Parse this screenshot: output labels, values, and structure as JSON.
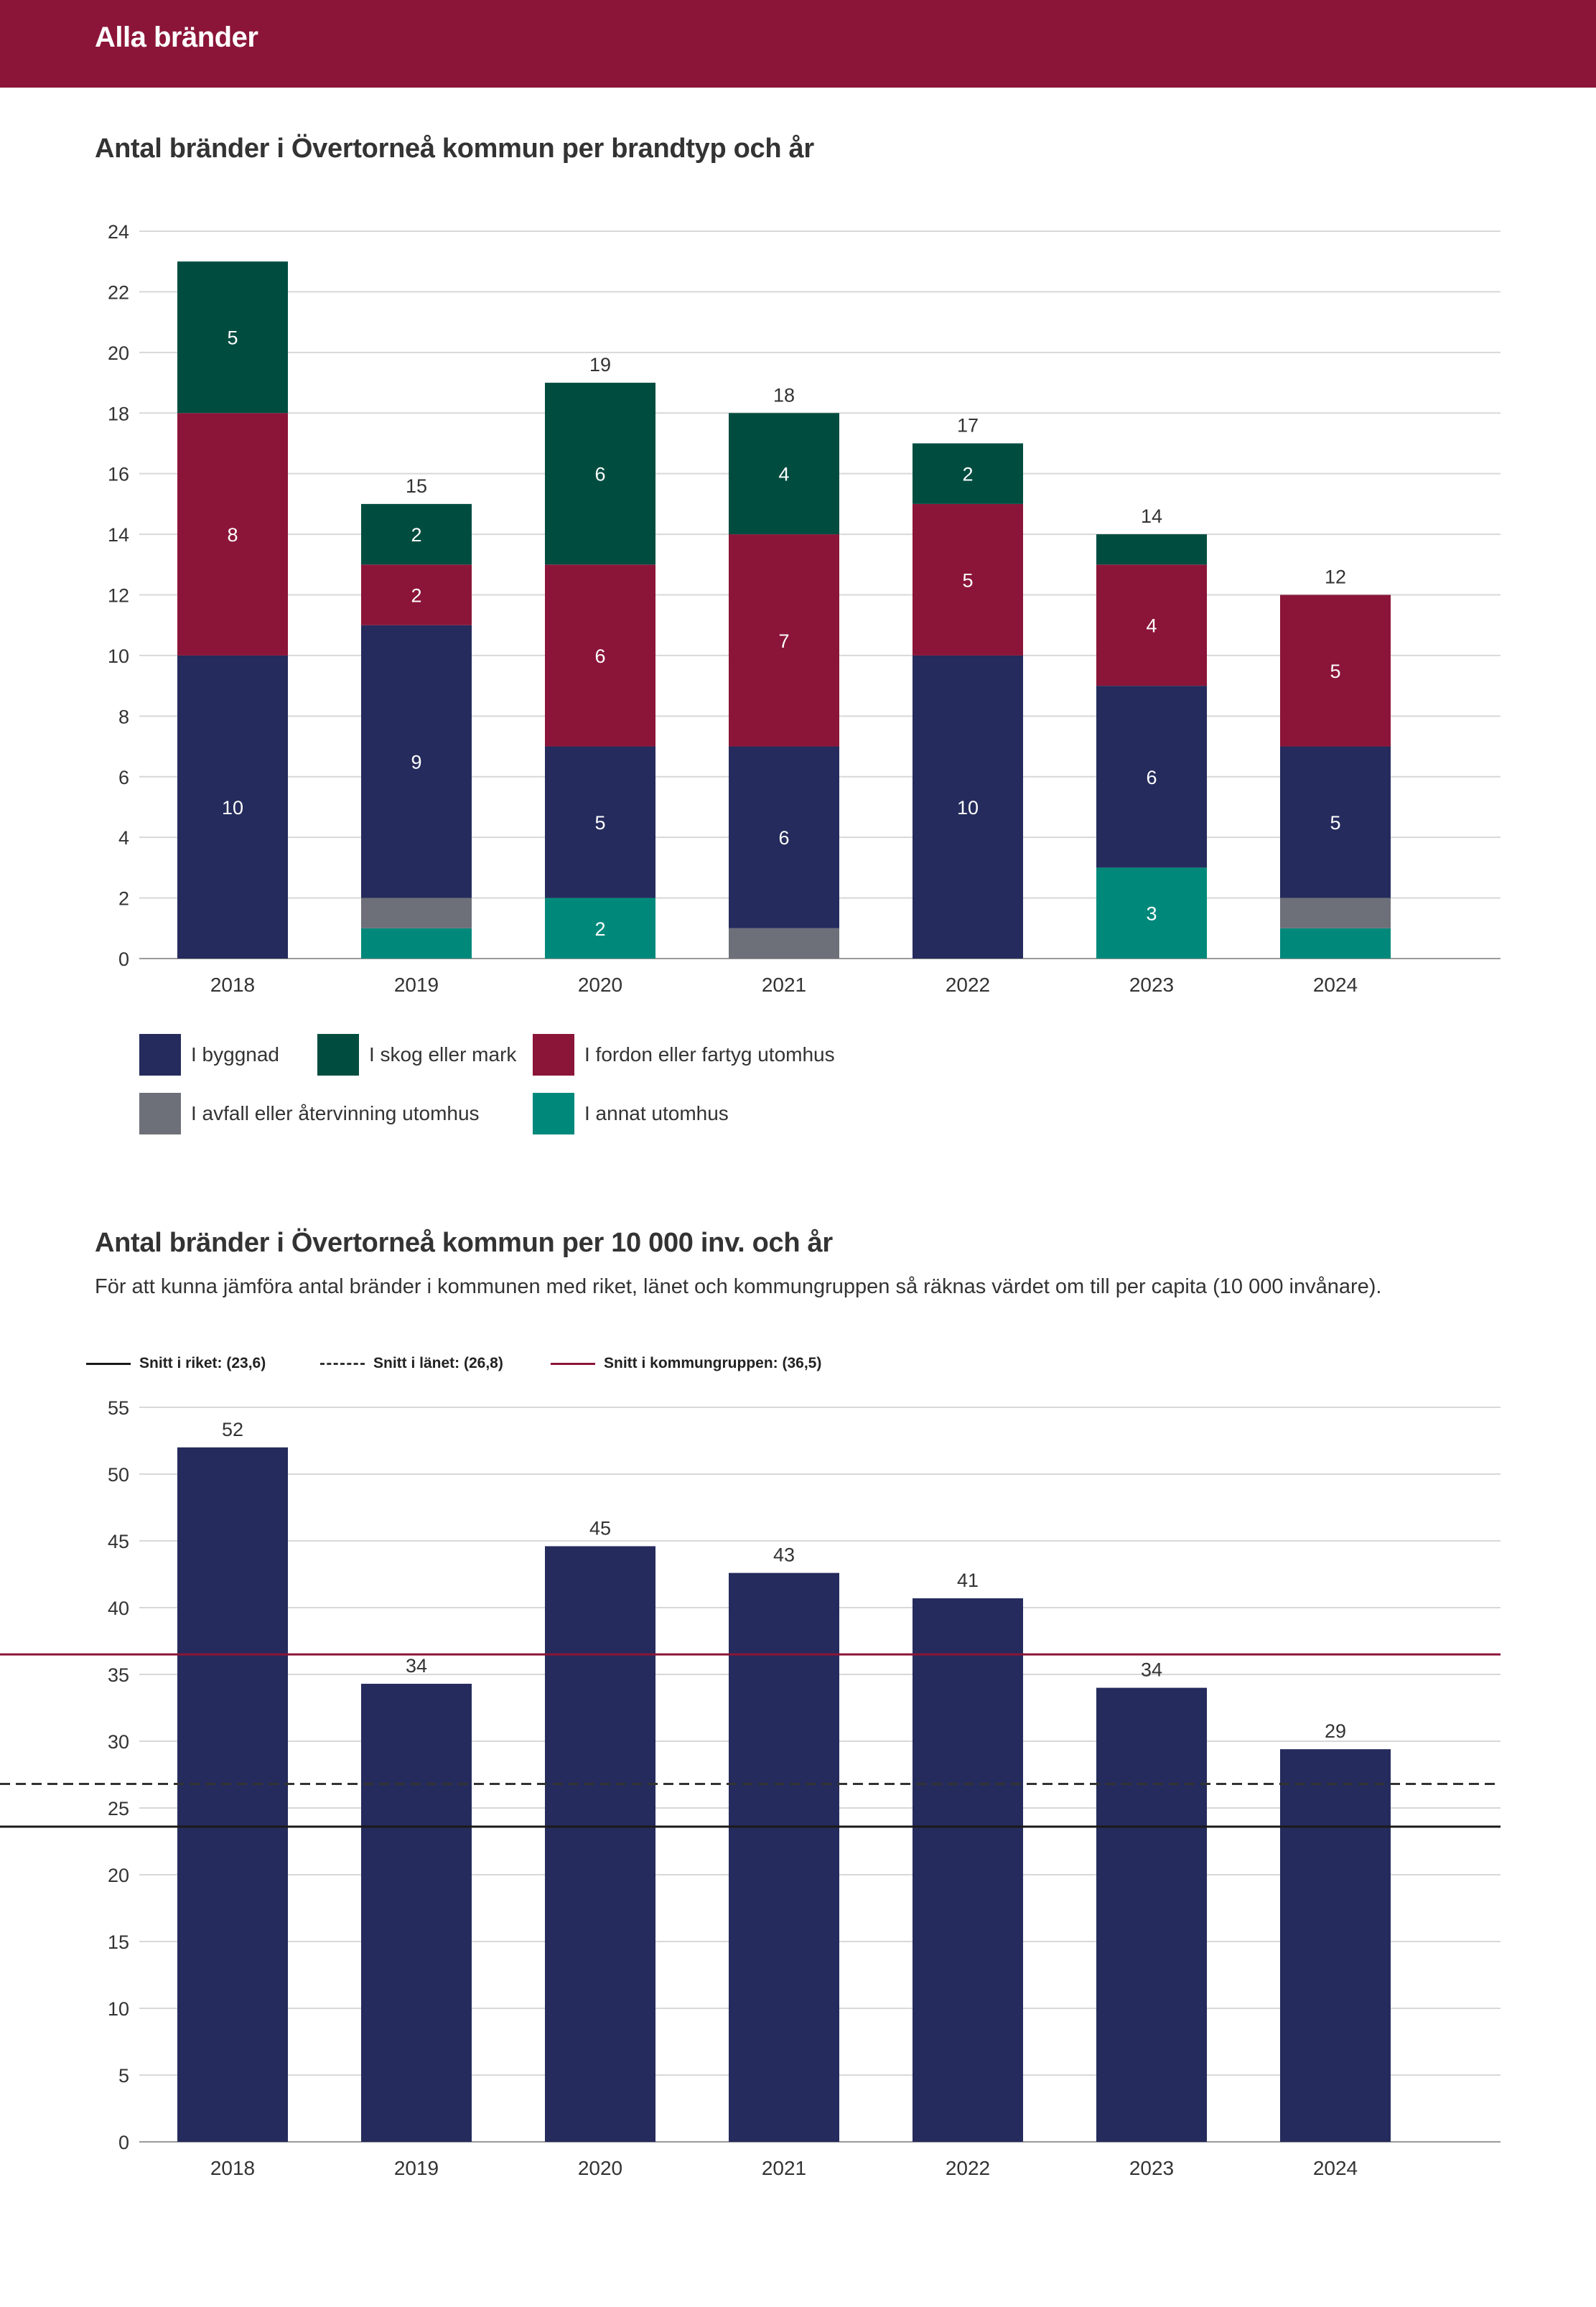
{
  "header": {
    "title": "Alla bränder"
  },
  "section1": {
    "title": "Antal bränder i Övertorneå kommun per brandtyp och år"
  },
  "section2": {
    "title": "Antal bränder i Övertorneå kommun per 10 000 inv. och år",
    "description": "För att kunna jämföra antal bränder i kommunen med riket, länet och kommungruppen så räknas värdet om till per capita (10 000 invånare)."
  },
  "colors": {
    "banner": "#8b1538",
    "byggnad": "#252b5c",
    "skog": "#004d40",
    "fordon": "#8b1538",
    "avfall": "#6e7079",
    "annat": "#00897b",
    "grid": "#d8d8d8",
    "riket_line": "#1a1a1a",
    "lanet_line": "#333333",
    "kommungrupp_line": "#8b1538"
  },
  "chart_data": [
    {
      "type": "bar",
      "stacked": true,
      "title": "Antal bränder i Övertorneå kommun per brandtyp och år",
      "categories": [
        "2018",
        "2019",
        "2020",
        "2021",
        "2022",
        "2023",
        "2024"
      ],
      "series": [
        {
          "name": "I annat utomhus",
          "key": "annat",
          "values": [
            0,
            1,
            2,
            0,
            0,
            3,
            1
          ],
          "labels": [
            "",
            "",
            "2",
            "",
            "",
            "3",
            ""
          ]
        },
        {
          "name": "I avfall eller återvinning utomhus",
          "key": "avfall",
          "values": [
            0,
            1,
            0,
            1,
            0,
            0,
            1
          ],
          "labels": [
            "",
            "",
            "",
            "",
            "",
            "",
            ""
          ]
        },
        {
          "name": "I byggnad",
          "key": "byggnad",
          "values": [
            10,
            9,
            5,
            6,
            10,
            6,
            5
          ],
          "labels": [
            "10",
            "9",
            "5",
            "6",
            "10",
            "6",
            "5"
          ]
        },
        {
          "name": "I fordon eller fartyg utomhus",
          "key": "fordon",
          "values": [
            8,
            2,
            6,
            7,
            5,
            4,
            5
          ],
          "labels": [
            "8",
            "2",
            "6",
            "7",
            "5",
            "4",
            "5"
          ]
        },
        {
          "name": "I skog eller mark",
          "key": "skog",
          "values": [
            5,
            2,
            6,
            4,
            2,
            1,
            0
          ],
          "labels": [
            "5",
            "2",
            "6",
            "4",
            "2",
            "",
            ""
          ]
        }
      ],
      "totals": [
        "",
        "15",
        "19",
        "18",
        "17",
        "14",
        "12"
      ],
      "ylim": [
        0,
        24
      ],
      "yticks": [
        "0",
        "2",
        "4",
        "6",
        "8",
        "10",
        "12",
        "14",
        "16",
        "18",
        "20",
        "22",
        "24"
      ],
      "legend": [
        {
          "label": "I byggnad",
          "key": "byggnad"
        },
        {
          "label": "I skog eller mark",
          "key": "skog"
        },
        {
          "label": "I fordon eller fartyg utomhus",
          "key": "fordon"
        },
        {
          "label": "I avfall eller återvinning utomhus",
          "key": "avfall"
        },
        {
          "label": "I annat utomhus",
          "key": "annat"
        }
      ],
      "xlabel": "",
      "ylabel": ""
    },
    {
      "type": "bar",
      "title": "Antal bränder i Övertorneå kommun per 10 000 inv. och år",
      "categories": [
        "2018",
        "2019",
        "2020",
        "2021",
        "2022",
        "2023",
        "2024"
      ],
      "values": [
        52,
        34.3,
        44.6,
        42.6,
        40.7,
        34,
        29.4
      ],
      "value_labels": [
        "52",
        "34",
        "45",
        "43",
        "41",
        "34",
        "29"
      ],
      "ylim": [
        0,
        55
      ],
      "yticks": [
        "0",
        "5",
        "10",
        "15",
        "20",
        "25",
        "30",
        "35",
        "40",
        "45",
        "50",
        "55"
      ],
      "reference_lines": [
        {
          "label": "Snitt i riket: (23,6)",
          "value": 23.6,
          "style": "solid",
          "key": "riket_line"
        },
        {
          "label": "Snitt i länet: (26,8)",
          "value": 26.8,
          "style": "dashed",
          "key": "lanet_line"
        },
        {
          "label": "Snitt i kommungruppen: (36,5)",
          "value": 36.5,
          "style": "solid",
          "key": "kommungrupp_line"
        }
      ],
      "xlabel": "",
      "ylabel": ""
    }
  ]
}
